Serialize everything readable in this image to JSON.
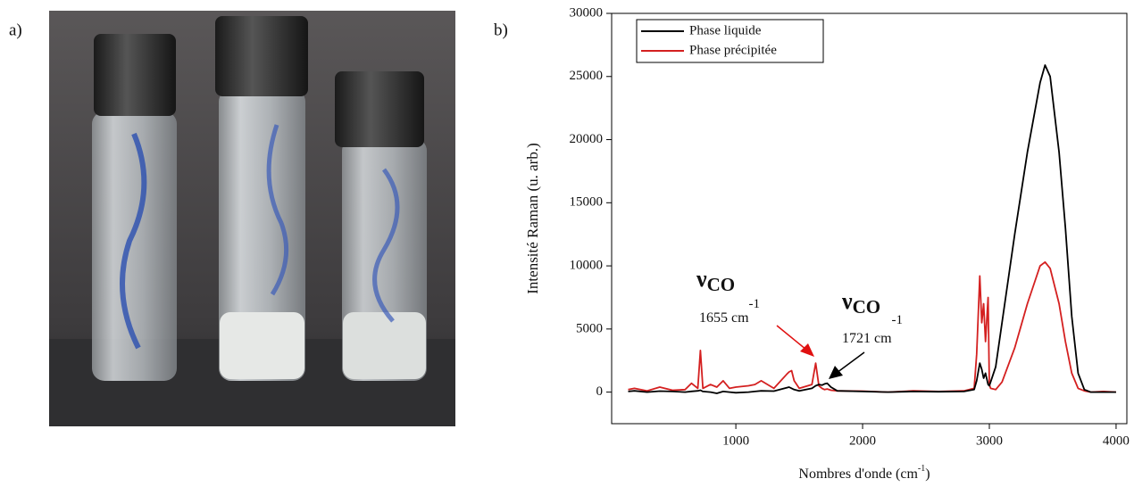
{
  "panel_labels": [
    "a)",
    "b)"
  ],
  "chart_data": {
    "type": "line",
    "ylabel": "Intensité Raman (u. arb.)",
    "xlabel": {
      "text": "Nombres d'onde (cm",
      "sup": "-1",
      "end": ")"
    },
    "xlim": [
      20,
      4085
    ],
    "ylim": [
      -2500,
      30000
    ],
    "xticks": [
      1000,
      2000,
      3000,
      4000
    ],
    "yticks": [
      0,
      5000,
      10000,
      15000,
      20000,
      25000,
      30000
    ],
    "legend": "upper left",
    "x": [
      150,
      200,
      300,
      400,
      500,
      600,
      650,
      700,
      720,
      740,
      800,
      850,
      900,
      950,
      1000,
      1100,
      1150,
      1200,
      1300,
      1400,
      1420,
      1440,
      1460,
      1500,
      1600,
      1630,
      1655,
      1680,
      1700,
      1721,
      1750,
      1800,
      2000,
      2200,
      2400,
      2600,
      2800,
      2880,
      2900,
      2925,
      2940,
      2955,
      2970,
      2990,
      3000,
      3010,
      3050,
      3100,
      3200,
      3300,
      3400,
      3440,
      3480,
      3550,
      3600,
      3650,
      3700,
      3750,
      3800,
      3900,
      4000
    ],
    "series": [
      {
        "name": "Phase liquide",
        "color": "#000000",
        "values": [
          50,
          100,
          0,
          80,
          50,
          0,
          60,
          100,
          150,
          50,
          0,
          -100,
          50,
          0,
          -50,
          0,
          50,
          100,
          80,
          350,
          400,
          300,
          200,
          100,
          300,
          500,
          600,
          550,
          650,
          700,
          400,
          100,
          50,
          0,
          50,
          30,
          50,
          200,
          900,
          2300,
          1800,
          1100,
          1500,
          600,
          500,
          800,
          2000,
          5500,
          12500,
          19000,
          24500,
          25900,
          25000,
          19000,
          13000,
          6000,
          1500,
          200,
          0,
          0,
          0
        ]
      },
      {
        "name": "Phase précipitée",
        "color": "#d42020",
        "values": [
          200,
          300,
          100,
          400,
          150,
          200,
          700,
          300,
          3300,
          300,
          600,
          400,
          900,
          300,
          400,
          500,
          600,
          900,
          300,
          1400,
          1600,
          1700,
          900,
          300,
          600,
          2300,
          500,
          300,
          200,
          250,
          150,
          100,
          80,
          0,
          100,
          50,
          100,
          300,
          3000,
          9200,
          5500,
          7000,
          4000,
          7500,
          600,
          300,
          200,
          800,
          3500,
          7000,
          10000,
          10300,
          9800,
          7000,
          4000,
          1500,
          300,
          100,
          0,
          50,
          0
        ]
      }
    ],
    "annotations": [
      {
        "symbol": "ν",
        "sub": "CO",
        "label": "1655 cm",
        "sup": "-1"
      },
      {
        "symbol": "ν",
        "sub": "CO",
        "label": "1721  cm",
        "sup": "-1"
      }
    ]
  }
}
